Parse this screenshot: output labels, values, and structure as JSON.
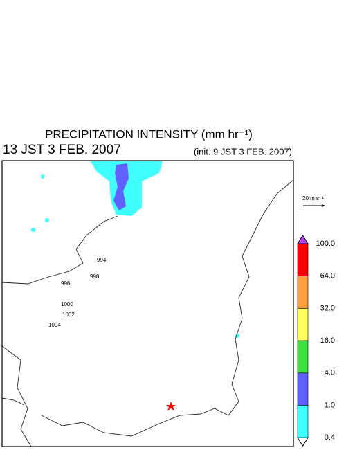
{
  "header": {
    "title": "PRECIPITATION INTENSITY (mm hr⁻¹)",
    "time": "13 JST 3 FEB. 2007",
    "init": "(init. 9 JST 3 FEB. 2007)"
  },
  "vector_scale": "20 m s⁻¹",
  "colorbar": {
    "labels": [
      "100.0",
      "64.0",
      "32.0",
      "16.0",
      "4.0",
      "1.0",
      "0.4"
    ],
    "colors": [
      "#ff0000",
      "#ffa040",
      "#ffff60",
      "#40e040",
      "#6060ff",
      "#40ffff"
    ],
    "over_color": "#c040ff",
    "under_color": "#ffffff"
  },
  "contour_labels": [
    "994",
    "996",
    "998",
    "1000",
    "1002",
    "1004"
  ]
}
